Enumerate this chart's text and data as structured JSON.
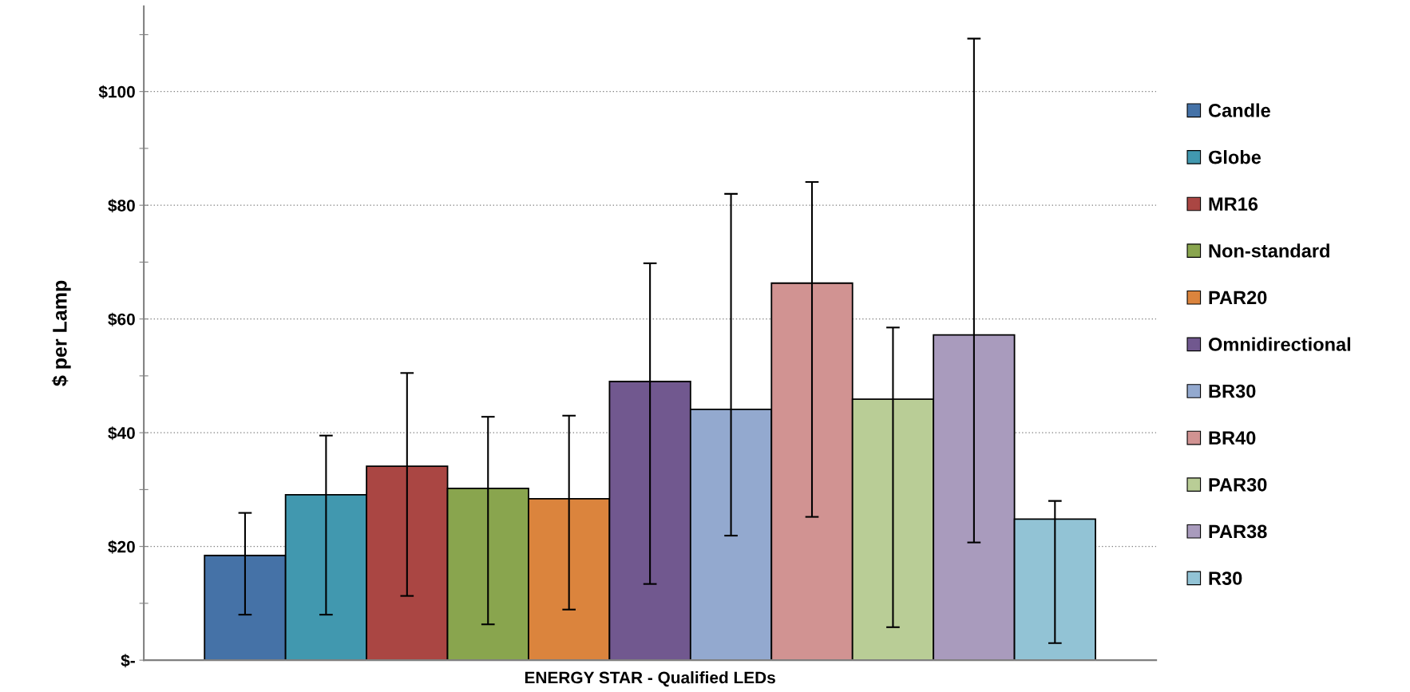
{
  "chart_data": {
    "type": "bar",
    "ylabel": "$ per Lamp",
    "categories": [
      "ENERGY STAR - Qualified LEDs"
    ],
    "series": [
      {
        "name": "Candle",
        "color": "#4572a7",
        "values": [
          18.4
        ],
        "errors": [
          [
            8.0,
            25.9
          ]
        ]
      },
      {
        "name": "Globe",
        "color": "#4198af",
        "values": [
          29.1
        ],
        "errors": [
          [
            8.0,
            39.5
          ]
        ]
      },
      {
        "name": "MR16",
        "color": "#aa4643",
        "values": [
          34.1
        ],
        "errors": [
          [
            11.3,
            50.5
          ]
        ]
      },
      {
        "name": "Non-standard",
        "color": "#89a54e",
        "values": [
          30.2
        ],
        "errors": [
          [
            6.3,
            42.8
          ]
        ]
      },
      {
        "name": "PAR20",
        "color": "#db843d",
        "values": [
          28.4
        ],
        "errors": [
          [
            8.9,
            43.0
          ]
        ]
      },
      {
        "name": "Omnidirectional",
        "color": "#71588f",
        "values": [
          49.0
        ],
        "errors": [
          [
            13.4,
            69.8
          ]
        ]
      },
      {
        "name": "BR30",
        "color": "#93a9cf",
        "values": [
          44.1
        ],
        "errors": [
          [
            21.9,
            82.0
          ]
        ]
      },
      {
        "name": "BR40",
        "color": "#d19392",
        "values": [
          66.3
        ],
        "errors": [
          [
            25.2,
            84.1
          ]
        ]
      },
      {
        "name": "PAR30",
        "color": "#b9cd96",
        "values": [
          45.9
        ],
        "errors": [
          [
            5.8,
            58.5
          ]
        ]
      },
      {
        "name": "PAR38",
        "color": "#a99bbd",
        "values": [
          57.2
        ],
        "errors": [
          [
            20.7,
            109.3
          ]
        ]
      },
      {
        "name": "R30",
        "color": "#92c3d5",
        "values": [
          24.8
        ],
        "errors": [
          [
            3.0,
            28.0
          ]
        ]
      }
    ],
    "ylim": [
      0,
      115
    ],
    "yticks": [
      {
        "value": 0,
        "label": "$-"
      },
      {
        "value": 10,
        "label": null
      },
      {
        "value": 20,
        "label": "$20"
      },
      {
        "value": 30,
        "label": null
      },
      {
        "value": 40,
        "label": "$40"
      },
      {
        "value": 50,
        "label": null
      },
      {
        "value": 60,
        "label": "$60"
      },
      {
        "value": 70,
        "label": null
      },
      {
        "value": 80,
        "label": "$80"
      },
      {
        "value": 90,
        "label": null
      },
      {
        "value": 100,
        "label": "$100"
      },
      {
        "value": 110,
        "label": null
      }
    ],
    "grid": "y",
    "legend": "right"
  }
}
